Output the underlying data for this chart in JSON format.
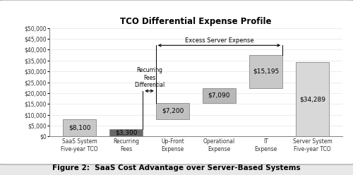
{
  "title": "TCO Differential Expense Profile",
  "figure_caption": "Figure 2:  SaaS Cost Advantage over Server-Based Systems",
  "categories": [
    "SaaS System\nFive-year TCO",
    "Recurring\nFees",
    "Up-Front\nExpense",
    "Operational\nExpense",
    "IT\nExpense",
    "Server System\nFive-year TCO"
  ],
  "bar_bottoms": [
    0,
    0,
    8100,
    15300,
    22390,
    0
  ],
  "bar_heights": [
    8100,
    3300,
    7200,
    7090,
    15195,
    34289
  ],
  "bar_colors": [
    "#c8c8c8",
    "#686868",
    "#c0c0c0",
    "#b8b8b8",
    "#c8c8c8",
    "#d8d8d8"
  ],
  "bar_labels": [
    "$8,100",
    "$3,300",
    "$7,200",
    "$7,090",
    "$15,195",
    "$34,289"
  ],
  "ylim": [
    0,
    50000
  ],
  "yticks": [
    0,
    5000,
    10000,
    15000,
    20000,
    25000,
    30000,
    35000,
    40000,
    45000,
    50000
  ],
  "ytick_labels": [
    "$0",
    "$5,000",
    "$10,000",
    "$15,000",
    "$20,000",
    "$25,000",
    "$30,000",
    "$35,000",
    "$40,000",
    "$45,000",
    "$50,000"
  ],
  "arrow1_text": "Recurring\nFees\nDifferential",
  "arrow2_text": "Excess Server Expense",
  "plot_bg": "#ffffff",
  "fig_bg": "#e8e8e8"
}
